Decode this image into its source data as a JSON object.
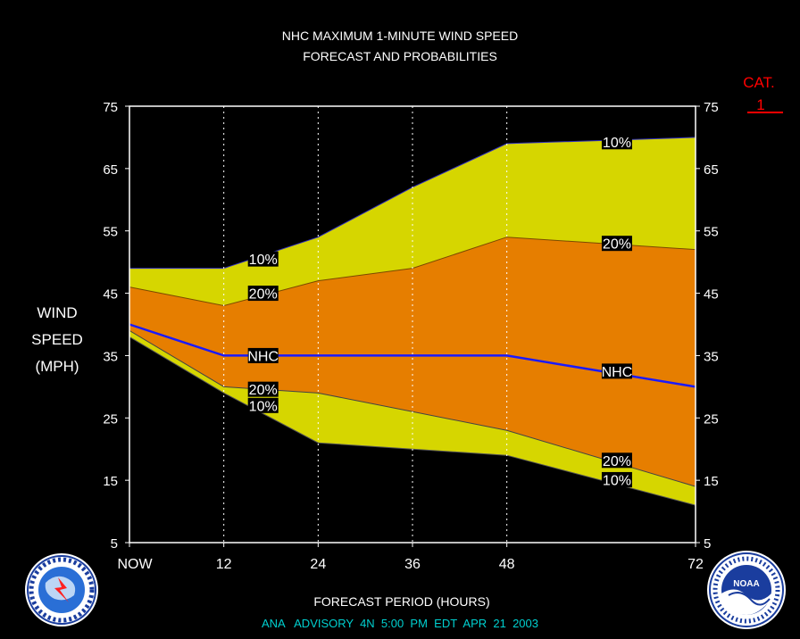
{
  "title_line1": "NHC MAXIMUM 1-MINUTE WIND SPEED",
  "title_line2": "FORECAST AND PROBABILITIES",
  "category": {
    "label": "CAT.",
    "value": "1",
    "color": "#ff0000"
  },
  "ylabel_lines": [
    "WIND",
    "SPEED",
    "(MPH)"
  ],
  "xlabel": "FORECAST PERIOD (HOURS)",
  "advisory": "ANA   ADVISORY  4N  5:00  PM  EDT  APR  21  2003",
  "logos": {
    "left": "nws-logo",
    "right": "noaa-logo"
  },
  "colors": {
    "band10": "#d6d600",
    "band20": "#e67e00",
    "nhc": "#1a1aff",
    "advisory": "#00d0d0"
  },
  "chart_data": {
    "type": "area",
    "xlim": [
      0,
      72
    ],
    "ylim": [
      5,
      75
    ],
    "x_ticks": [
      {
        "x": 0,
        "label": "NOW"
      },
      {
        "x": 12,
        "label": "12"
      },
      {
        "x": 24,
        "label": "24"
      },
      {
        "x": 36,
        "label": "36"
      },
      {
        "x": 48,
        "label": "48"
      },
      {
        "x": 72,
        "label": "72"
      }
    ],
    "y_ticks": [
      5,
      15,
      25,
      35,
      45,
      55,
      65,
      75
    ],
    "grid_x": [
      12,
      24,
      36,
      48
    ],
    "series": [
      {
        "name": "10%",
        "band": "upper",
        "x": [
          0,
          12,
          24,
          36,
          48,
          72
        ],
        "values": [
          49,
          49,
          54,
          62,
          69,
          70
        ]
      },
      {
        "name": "20%",
        "band": "upper",
        "x": [
          0,
          12,
          24,
          36,
          48,
          72
        ],
        "values": [
          46,
          43,
          47,
          49,
          54,
          52
        ]
      },
      {
        "name": "NHC",
        "x": [
          0,
          12,
          24,
          36,
          48,
          72
        ],
        "values": [
          40,
          35,
          35,
          35,
          35,
          30
        ]
      },
      {
        "name": "20%",
        "band": "lower",
        "x": [
          0,
          12,
          24,
          36,
          48,
          72
        ],
        "values": [
          39,
          30,
          29,
          26,
          23,
          14
        ]
      },
      {
        "name": "10%",
        "band": "lower",
        "x": [
          0,
          12,
          24,
          36,
          48,
          72
        ],
        "values": [
          38,
          29,
          21,
          20,
          19,
          11
        ]
      }
    ],
    "series_labels": [
      {
        "text": "10%",
        "x": 17,
        "y": 50.5
      },
      {
        "text": "20%",
        "x": 17,
        "y": 45
      },
      {
        "text": "NHC",
        "x": 17,
        "y": 35
      },
      {
        "text": "20%",
        "x": 17,
        "y": 29.6
      },
      {
        "text": "10%",
        "x": 17,
        "y": 27
      },
      {
        "text": "10%",
        "x": 62,
        "y": 69.3
      },
      {
        "text": "20%",
        "x": 62,
        "y": 53
      },
      {
        "text": "NHC",
        "x": 62,
        "y": 32.5
      },
      {
        "text": "20%",
        "x": 62,
        "y": 18.2
      },
      {
        "text": "10%",
        "x": 62,
        "y": 15.1
      }
    ]
  }
}
